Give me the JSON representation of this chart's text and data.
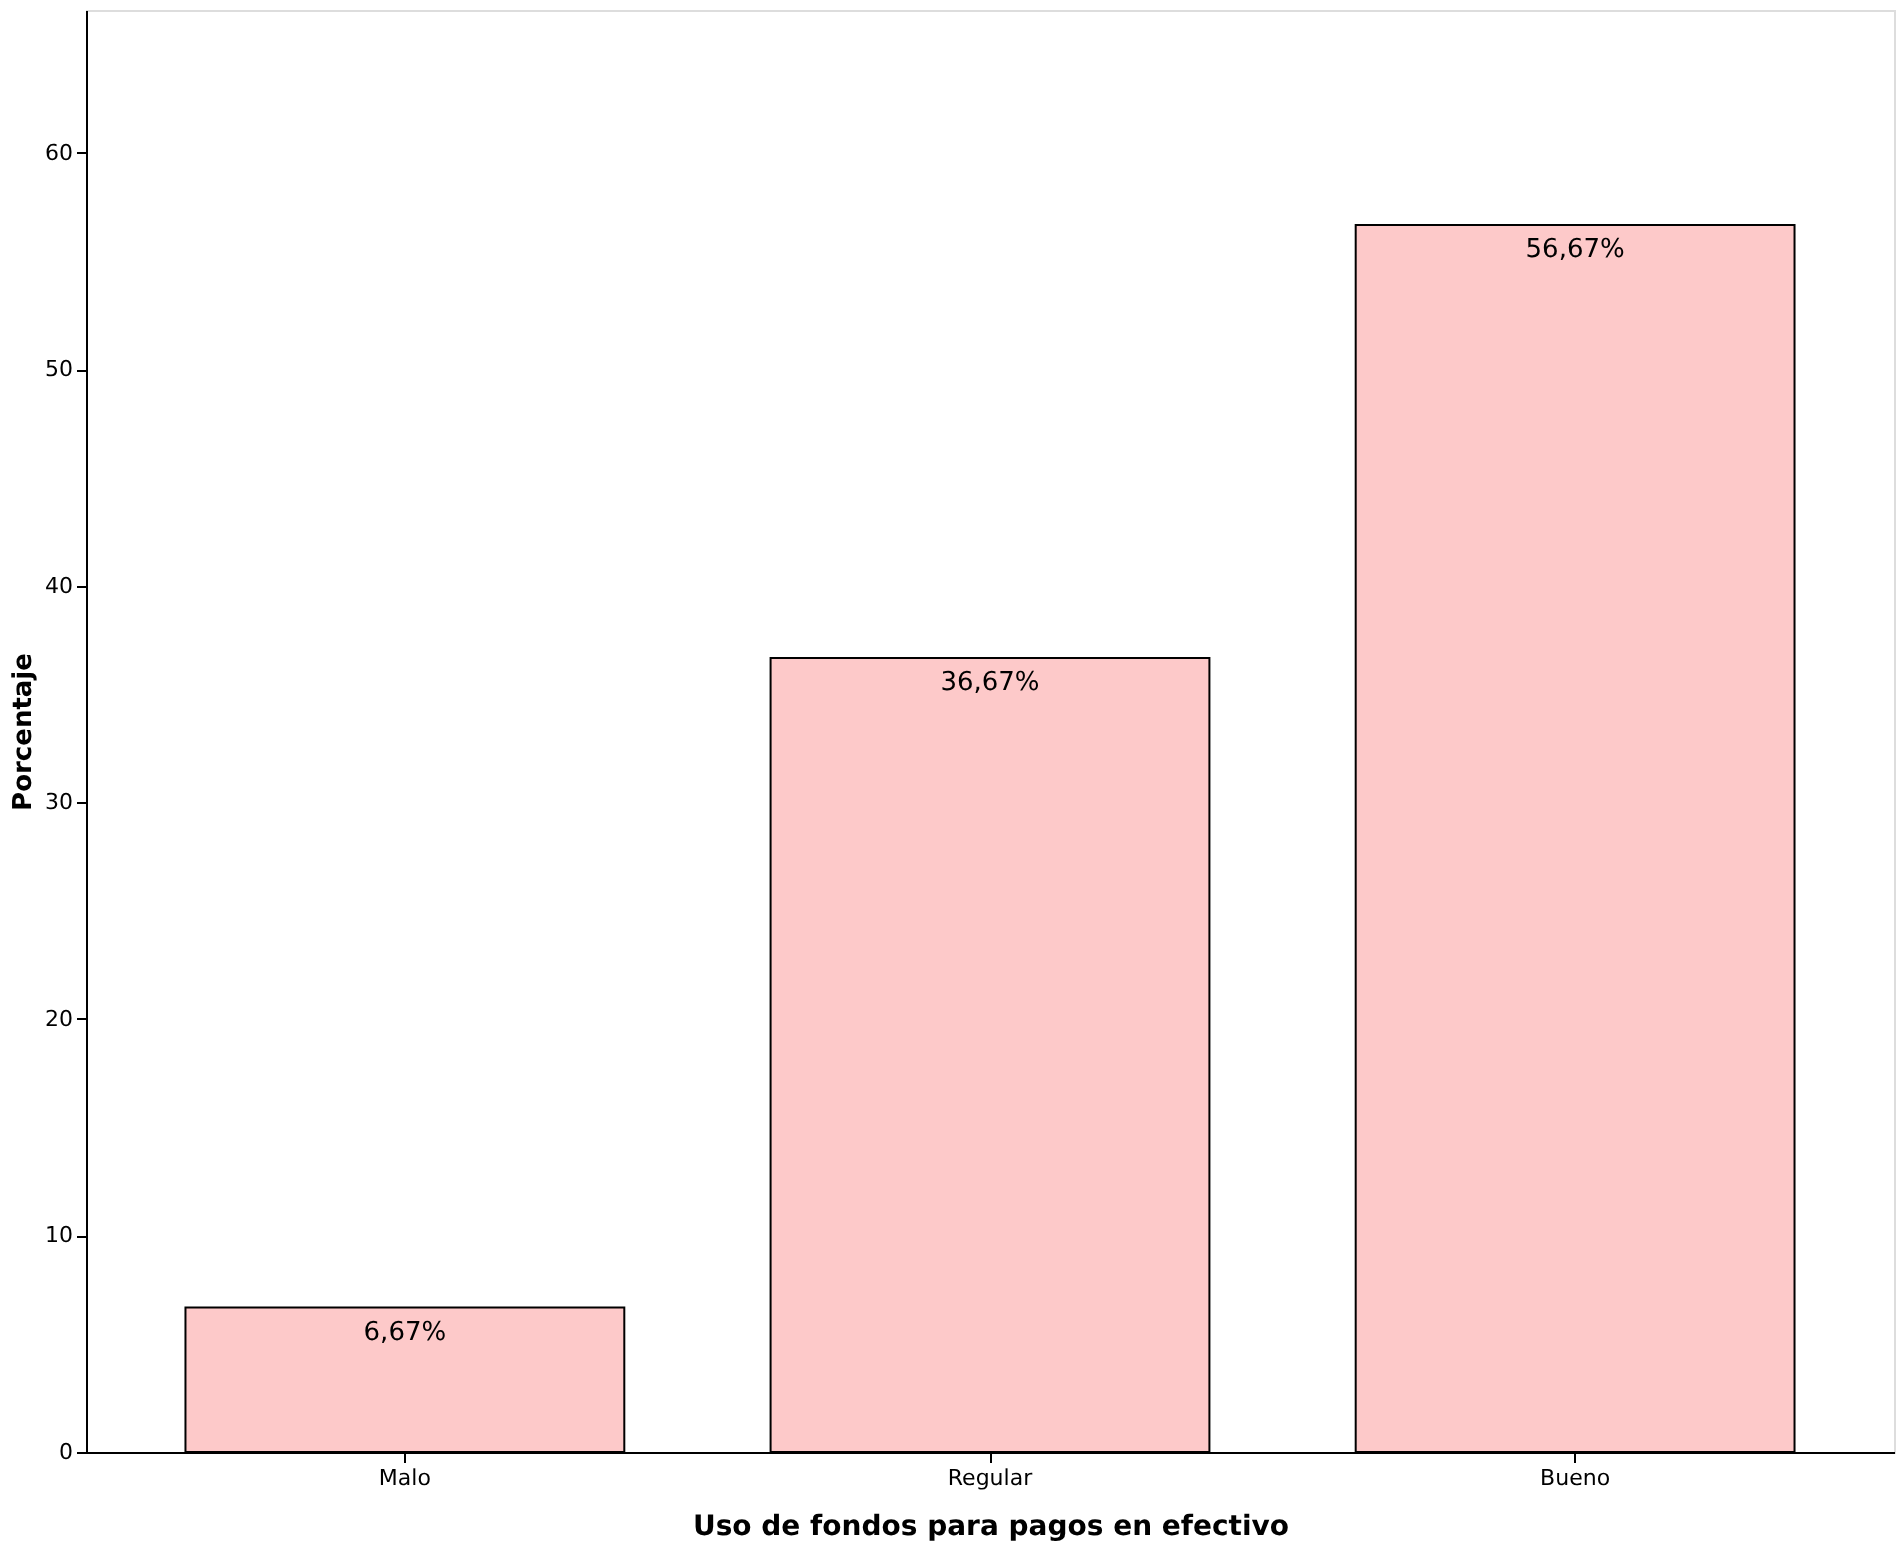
{
  "chart_data": {
    "type": "bar",
    "xlabel": "Uso de fondos para pagos en efectivo",
    "ylabel": "Porcentaje",
    "categories": [
      "Malo",
      "Regular",
      "Bueno"
    ],
    "values": [
      6.67,
      36.67,
      56.67
    ],
    "value_labels": [
      "6,67%",
      "36,67%",
      "56,67%"
    ],
    "color": "#fdc9c9",
    "ylim": [
      0,
      66.6
    ],
    "yticks": [
      0,
      10,
      20,
      30,
      40,
      50,
      60
    ]
  }
}
